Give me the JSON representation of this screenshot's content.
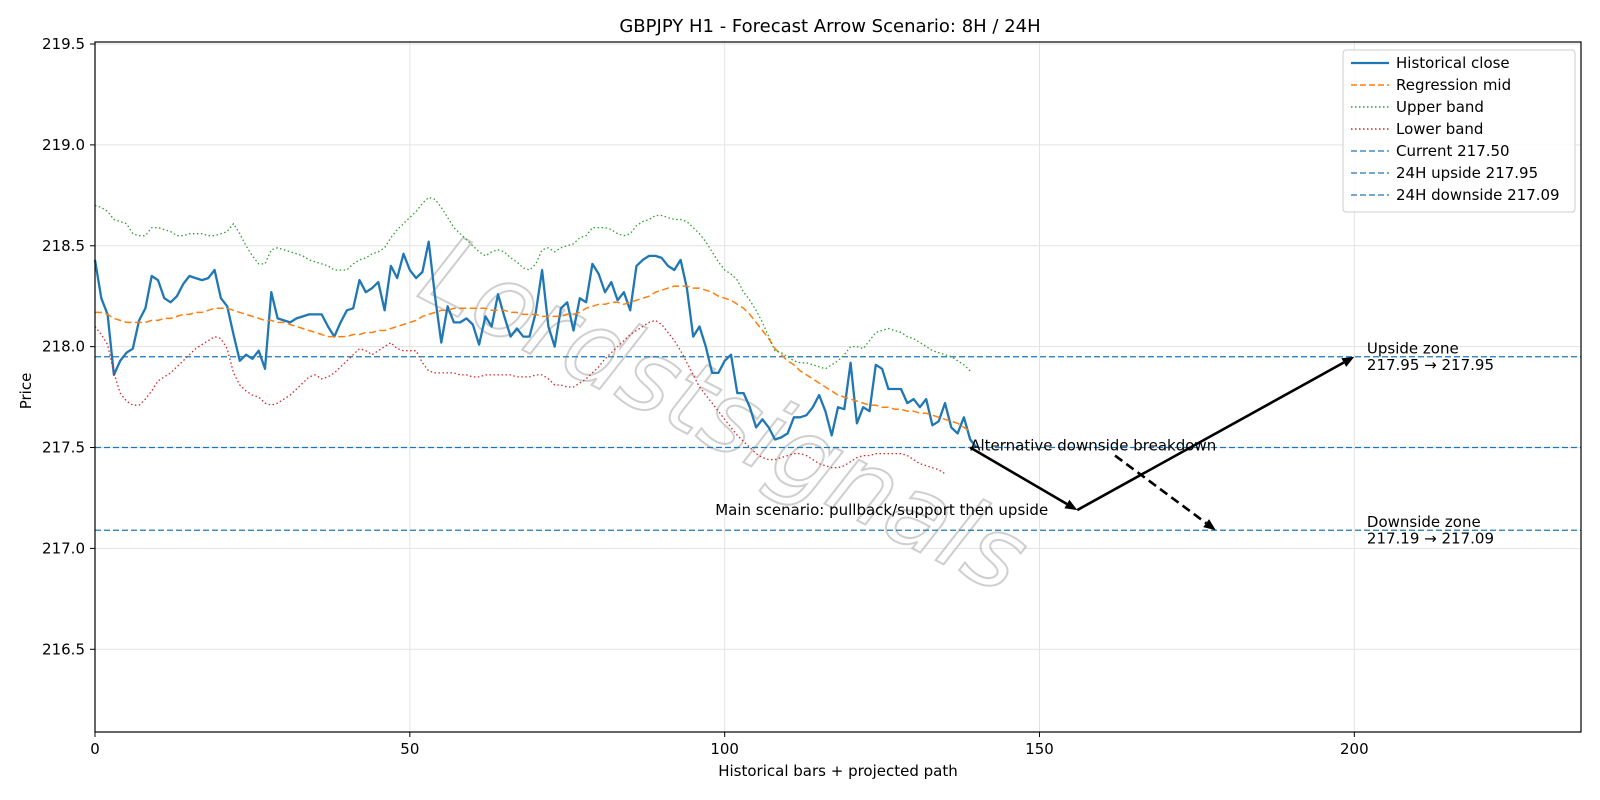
{
  "chart_data": {
    "type": "line",
    "title": "GBPJPY H1 - Forecast Arrow Scenario: 8H / 24H",
    "xlabel": "Historical bars + projected path",
    "ylabel": "Price",
    "xlim": [
      0,
      236
    ],
    "ylim": [
      216.09,
      219.51
    ],
    "xticks": [
      0,
      50,
      100,
      150,
      200
    ],
    "yticks": [
      216.5,
      217.0,
      217.5,
      218.0,
      218.5,
      219.0,
      219.5
    ],
    "grid": true,
    "legend_position": "top-right",
    "watermark": "Lordstsignals",
    "colors": {
      "close": "#1f77b4",
      "mid": "#ff7f0e",
      "upper": "#2ca02c",
      "lower": "#d62728",
      "hline": "#1f77b4",
      "arrow": "#000000"
    },
    "series": [
      {
        "name": "Historical close",
        "style": "solid",
        "values": [
          218.43,
          218.24,
          218.16,
          217.86,
          217.93,
          217.97,
          217.99,
          218.13,
          218.19,
          218.35,
          218.33,
          218.24,
          218.22,
          218.25,
          218.31,
          218.35,
          218.34,
          218.33,
          218.34,
          218.38,
          218.24,
          218.2,
          218.06,
          217.93,
          217.96,
          217.94,
          217.98,
          217.89,
          218.27,
          218.14,
          218.13,
          218.12,
          218.14,
          218.15,
          218.16,
          218.16,
          218.16,
          218.1,
          218.05,
          218.12,
          218.18,
          218.19,
          218.33,
          218.27,
          218.29,
          218.32,
          218.18,
          218.4,
          218.34,
          218.46,
          218.38,
          218.34,
          218.37,
          218.52,
          218.25,
          218.02,
          218.2,
          218.12,
          218.12,
          218.14,
          218.11,
          218.01,
          218.15,
          218.1,
          218.26,
          218.15,
          218.05,
          218.09,
          218.05,
          218.05,
          218.17,
          218.38,
          218.1,
          218.0,
          218.19,
          218.22,
          218.08,
          218.24,
          218.22,
          218.41,
          218.36,
          218.27,
          218.32,
          218.23,
          218.27,
          218.18,
          218.4,
          218.43,
          218.45,
          218.45,
          218.44,
          218.4,
          218.38,
          218.43,
          218.29,
          218.05,
          218.1,
          218.0,
          217.87,
          217.87,
          217.93,
          217.96,
          217.77,
          217.77,
          217.7,
          217.6,
          217.64,
          217.6,
          217.54,
          217.55,
          217.57,
          217.65,
          217.65,
          217.66,
          217.7,
          217.76,
          217.68,
          217.56,
          217.7,
          217.69,
          217.92,
          217.62,
          217.7,
          217.68,
          217.91,
          217.89,
          217.79,
          217.79,
          217.79,
          217.72,
          217.74,
          217.7,
          217.74,
          217.61,
          217.63,
          217.72,
          217.6,
          217.57,
          217.65,
          217.54,
          217.5
        ]
      },
      {
        "name": "Regression mid",
        "style": "dashed",
        "values": [
          218.17,
          218.17,
          218.16,
          218.14,
          218.13,
          218.12,
          218.12,
          218.12,
          218.12,
          218.13,
          218.13,
          218.14,
          218.14,
          218.15,
          218.16,
          218.16,
          218.17,
          218.17,
          218.18,
          218.19,
          218.19,
          218.19,
          218.18,
          218.17,
          218.16,
          218.15,
          218.14,
          218.13,
          218.13,
          218.12,
          218.12,
          218.11,
          218.1,
          218.09,
          218.08,
          218.07,
          218.06,
          218.05,
          218.05,
          218.05,
          218.05,
          218.06,
          218.06,
          218.07,
          218.07,
          218.08,
          218.08,
          218.09,
          218.1,
          218.11,
          218.12,
          218.13,
          218.15,
          218.16,
          218.17,
          218.18,
          218.18,
          218.19,
          218.19,
          218.19,
          218.19,
          218.19,
          218.19,
          218.18,
          218.18,
          218.18,
          218.17,
          218.17,
          218.16,
          218.16,
          218.16,
          218.15,
          218.15,
          218.15,
          218.15,
          218.16,
          218.16,
          218.17,
          218.19,
          218.2,
          218.21,
          218.21,
          218.22,
          218.22,
          218.21,
          218.22,
          218.23,
          218.24,
          218.25,
          218.27,
          218.28,
          218.29,
          218.3,
          218.3,
          218.3,
          218.29,
          218.29,
          218.28,
          218.27,
          218.25,
          218.24,
          218.23,
          218.21,
          218.19,
          218.16,
          218.12,
          218.08,
          218.04,
          217.99,
          217.96,
          217.93,
          217.91,
          217.88,
          217.86,
          217.84,
          217.82,
          217.8,
          217.78,
          217.76,
          217.75,
          217.74,
          217.73,
          217.72,
          217.71,
          217.71,
          217.7,
          217.7,
          217.69,
          217.69,
          217.68,
          217.68,
          217.67,
          217.67,
          217.66,
          217.65,
          217.64,
          217.63,
          217.62,
          217.6,
          217.58
        ]
      },
      {
        "name": "Upper band",
        "style": "dotted",
        "values": [
          218.7,
          218.69,
          218.67,
          218.63,
          218.62,
          218.61,
          218.56,
          218.55,
          218.55,
          218.59,
          218.59,
          218.58,
          218.57,
          218.55,
          218.55,
          218.56,
          218.56,
          218.56,
          218.55,
          218.55,
          218.56,
          218.57,
          218.61,
          218.56,
          218.5,
          218.45,
          218.41,
          218.41,
          218.48,
          218.49,
          218.48,
          218.47,
          218.46,
          218.45,
          218.43,
          218.42,
          218.41,
          218.4,
          218.38,
          218.38,
          218.38,
          218.41,
          218.43,
          218.44,
          218.46,
          218.47,
          218.49,
          218.54,
          218.58,
          218.61,
          218.64,
          218.67,
          218.71,
          218.74,
          218.73,
          218.69,
          218.64,
          218.59,
          218.56,
          218.53,
          218.5,
          218.47,
          218.45,
          218.47,
          218.48,
          218.47,
          218.44,
          218.42,
          218.39,
          218.38,
          218.41,
          218.48,
          218.49,
          218.47,
          218.49,
          218.5,
          218.51,
          218.54,
          218.55,
          218.59,
          218.59,
          218.59,
          218.58,
          218.56,
          218.55,
          218.56,
          218.6,
          218.62,
          218.63,
          218.65,
          218.65,
          218.64,
          218.63,
          218.63,
          218.62,
          218.59,
          218.56,
          218.52,
          218.47,
          218.42,
          218.38,
          218.36,
          218.33,
          218.27,
          218.23,
          218.18,
          218.12,
          218.05,
          217.98,
          217.97,
          217.95,
          217.93,
          217.92,
          217.92,
          217.91,
          217.9,
          217.89,
          217.91,
          217.93,
          217.96,
          218.0,
          218.0,
          217.99,
          218.03,
          218.07,
          218.08,
          218.09,
          218.08,
          218.07,
          218.05,
          218.04,
          218.02,
          218.0,
          217.98,
          217.97,
          217.96,
          217.95,
          217.93,
          217.91,
          217.88
        ]
      },
      {
        "name": "Lower band",
        "style": "dotted",
        "values": [
          218.1,
          218.06,
          218.01,
          217.87,
          217.77,
          217.73,
          217.71,
          217.71,
          217.74,
          217.78,
          217.83,
          217.85,
          217.87,
          217.9,
          217.93,
          217.96,
          217.99,
          218.01,
          218.03,
          218.05,
          218.04,
          217.99,
          217.87,
          217.81,
          217.78,
          217.76,
          217.75,
          217.72,
          217.71,
          217.72,
          217.74,
          217.76,
          217.79,
          217.82,
          217.85,
          217.86,
          217.84,
          217.85,
          217.87,
          217.9,
          217.93,
          217.96,
          217.99,
          217.98,
          217.96,
          217.98,
          218.0,
          218.02,
          217.99,
          217.98,
          217.98,
          217.98,
          217.92,
          217.88,
          217.87,
          217.87,
          217.87,
          217.87,
          217.86,
          217.86,
          217.85,
          217.85,
          217.86,
          217.86,
          217.86,
          217.86,
          217.86,
          217.85,
          217.85,
          217.85,
          217.86,
          217.86,
          217.84,
          217.81,
          217.81,
          217.8,
          217.8,
          217.82,
          217.84,
          217.87,
          217.9,
          217.94,
          217.97,
          218.0,
          218.03,
          218.06,
          218.08,
          218.1,
          218.12,
          218.13,
          218.11,
          218.07,
          218.03,
          217.98,
          217.92,
          217.86,
          217.8,
          217.76,
          217.72,
          217.68,
          217.64,
          217.6,
          217.56,
          217.53,
          217.5,
          217.47,
          217.45,
          217.44,
          217.44,
          217.45,
          217.46,
          217.47,
          217.47,
          217.46,
          217.44,
          217.42,
          217.41,
          217.4,
          217.4,
          217.41,
          217.43,
          217.45,
          217.46,
          217.46,
          217.47,
          217.47,
          217.47,
          217.47,
          217.47,
          217.46,
          217.44,
          217.42,
          217.41,
          217.4,
          217.39,
          217.37
        ]
      }
    ],
    "hlines": [
      {
        "name": "Current 217.50",
        "value": 217.5
      },
      {
        "name": "24H upside 217.95",
        "value": 217.95
      },
      {
        "name": "24H downside 217.09",
        "value": 217.09
      }
    ],
    "arrows": [
      {
        "name": "main-leg-1",
        "from": [
          139,
          217.5
        ],
        "to": [
          156,
          217.19
        ],
        "style": "solid"
      },
      {
        "name": "main-leg-2",
        "from": [
          156,
          217.19
        ],
        "to": [
          200,
          217.95
        ],
        "style": "solid"
      },
      {
        "name": "alt-downside",
        "from": [
          162,
          217.46
        ],
        "to": [
          178,
          217.09
        ],
        "style": "dashed"
      }
    ],
    "annotations": {
      "main": {
        "text": "Main scenario: pullback/support then upside",
        "x": 98.5,
        "y": 217.19
      },
      "alt": {
        "text": "Alternative downside breakdown",
        "x": 139,
        "y": 217.51
      },
      "upside_title": {
        "text": "Upside zone",
        "x": 202,
        "y": 217.99
      },
      "upside_value": {
        "text": "217.95 → 217.95",
        "x": 202,
        "y": 217.91
      },
      "downside_title": {
        "text": "Downside zone",
        "x": 202,
        "y": 217.13
      },
      "downside_value": {
        "text": "217.19 → 217.09",
        "x": 202,
        "y": 217.05
      }
    }
  }
}
